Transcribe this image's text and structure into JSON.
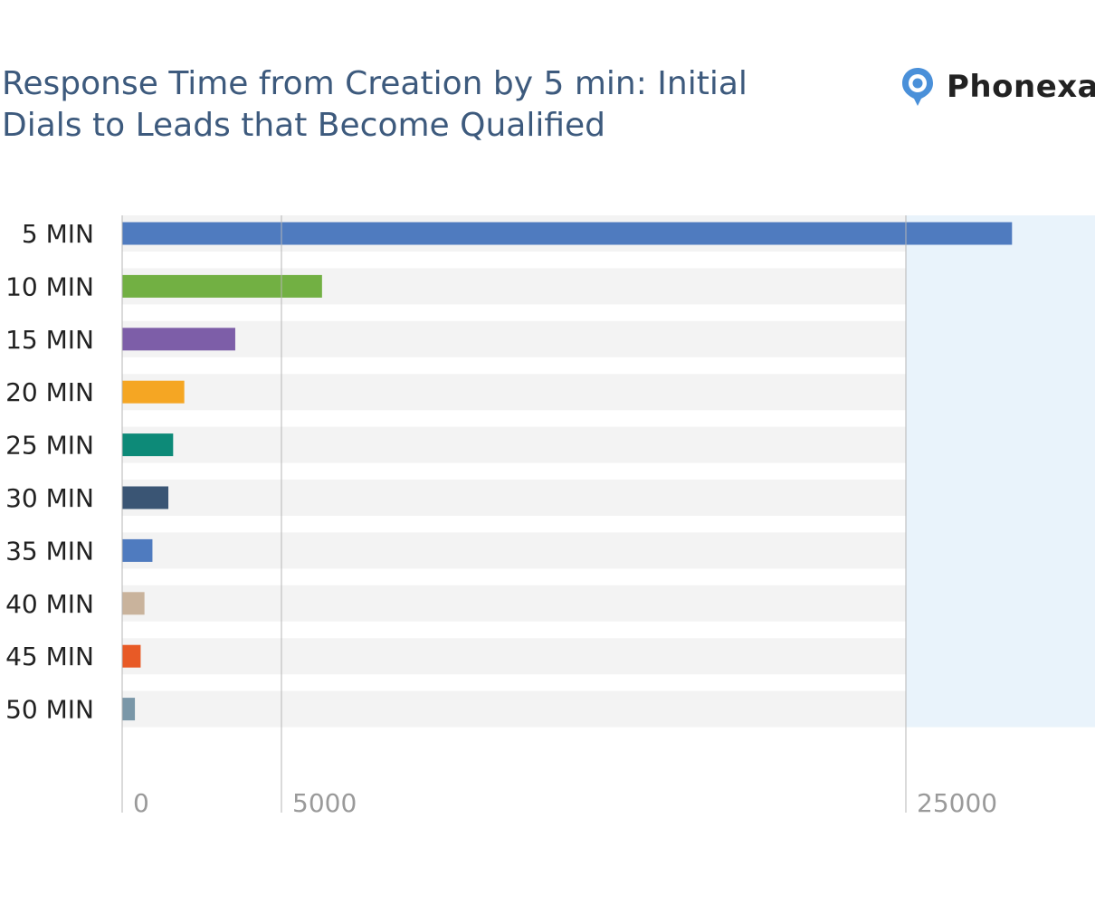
{
  "brand": {
    "name": "Phonexa",
    "mark": "®",
    "icon": "location-pin-chat-icon",
    "accent": "#4a90d9"
  },
  "chart_data": {
    "type": "bar",
    "orientation": "horizontal",
    "title": "Response Time from Creation by 5 min: Initial Dials to Leads that Become Qualified",
    "xlabel": "",
    "ylabel": "",
    "categories": [
      "5 MIN",
      "10 MIN",
      "15 MIN",
      "20 MIN",
      "25 MIN",
      "30 MIN",
      "35 MIN",
      "40 MIN",
      "45 MIN",
      "50 MIN"
    ],
    "values": [
      28400,
      6300,
      3550,
      1950,
      1600,
      1450,
      950,
      700,
      580,
      400
    ],
    "colors": [
      "#4f7bbf",
      "#72b043",
      "#7d5ea8",
      "#f5a623",
      "#0d8a78",
      "#3a5574",
      "#4f7bbf",
      "#c9b39c",
      "#e85a26",
      "#7a97a8"
    ],
    "xticks": [
      "0",
      "5000",
      "25000"
    ],
    "axis_breaks": "non-linear axis: 0 to 5000 short segment, 5000 to 25000 long segment",
    "grid": true,
    "legend": "none"
  }
}
